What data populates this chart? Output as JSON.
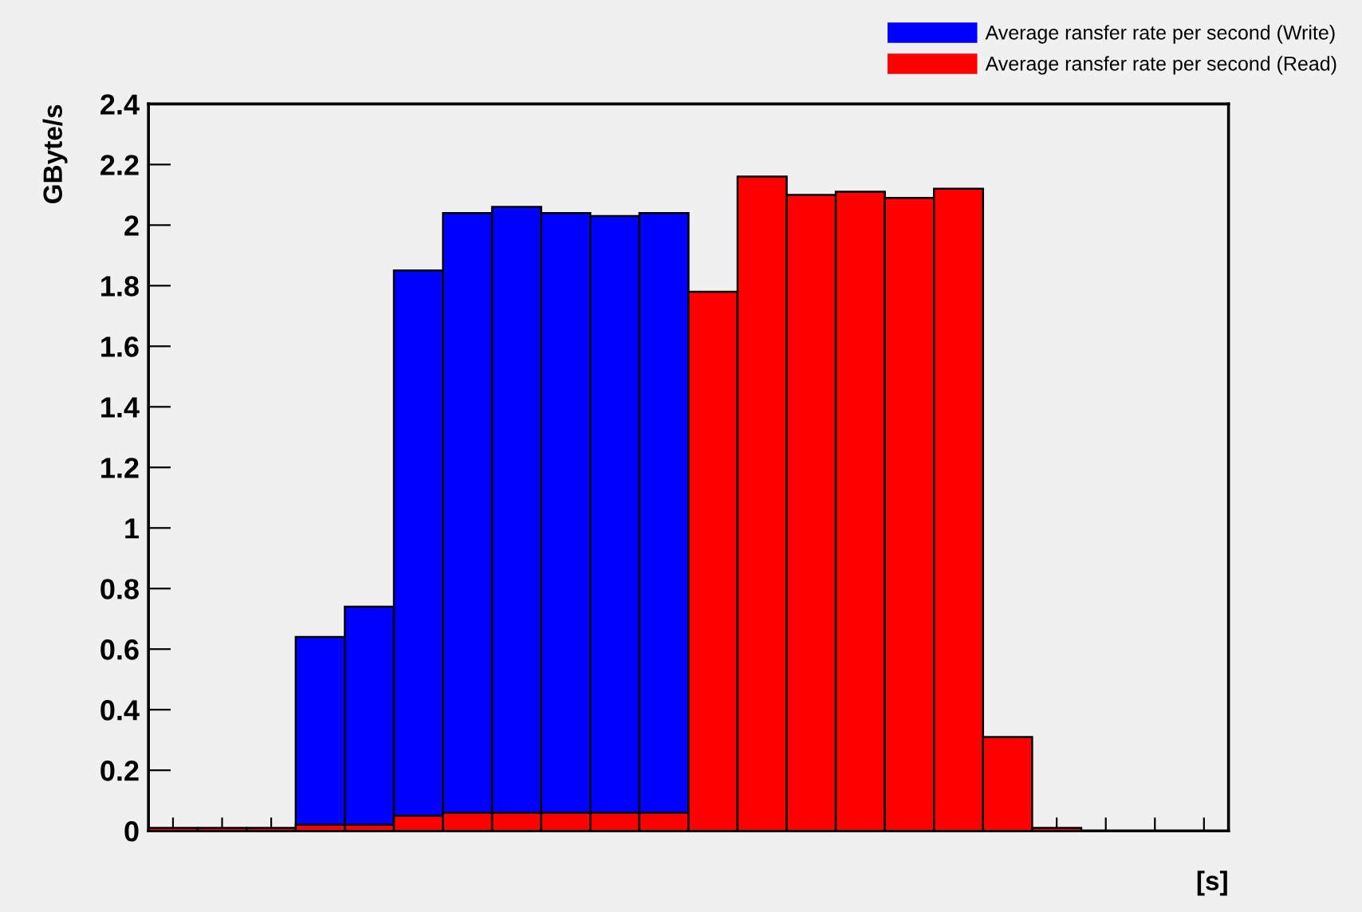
{
  "chart_data": {
    "type": "bar",
    "ylabel": "GByte/s",
    "xlabel": "[s]",
    "categories": [
      null,
      null,
      null,
      null,
      null,
      null,
      null,
      null,
      null,
      null,
      null,
      null,
      null,
      null,
      null,
      null,
      null,
      null,
      null,
      null,
      null,
      null
    ],
    "series": [
      {
        "name": "Average ransfer rate per second (Write)",
        "color": "#0000ff",
        "values": [
          null,
          null,
          null,
          0.64,
          0.74,
          1.85,
          2.04,
          2.06,
          2.04,
          2.03,
          2.04,
          null,
          null,
          null,
          null,
          null,
          null,
          null,
          null,
          null,
          null,
          null
        ]
      },
      {
        "name": "Average ransfer rate per second (Read)",
        "color": "#ff0000",
        "values": [
          0.01,
          0.01,
          0.01,
          0.02,
          0.02,
          0.05,
          0.06,
          0.06,
          0.06,
          0.06,
          0.06,
          1.78,
          2.16,
          2.1,
          2.11,
          2.09,
          2.12,
          0.31,
          0.01,
          null,
          null,
          null
        ]
      }
    ],
    "ylim": [
      0,
      2.4
    ],
    "yticks": [
      0,
      0.2,
      0.4,
      0.6,
      0.8,
      1,
      1.2,
      1.4,
      1.6,
      1.8,
      2,
      2.2,
      2.4
    ],
    "legend": "top right",
    "grid": false
  }
}
